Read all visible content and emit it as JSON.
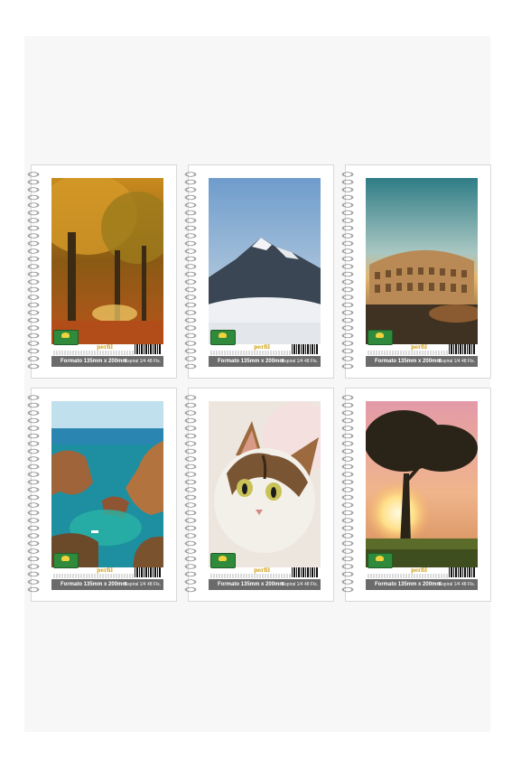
{
  "notebooks": [
    {
      "scene": "autumn-forest-icon",
      "brand": "perfil",
      "format_label": "Formato 135mm x 200mm",
      "spiral_label": "Espiral 1/4 48 Fls."
    },
    {
      "scene": "snowy-mountain-icon",
      "brand": "perfil",
      "format_label": "Formato 135mm x 200mm",
      "spiral_label": "Espiral 1/4 48 Fls."
    },
    {
      "scene": "colosseum-icon",
      "brand": "perfil",
      "format_label": "Formato 135mm x 200mm",
      "spiral_label": "Espiral 1/4 48 Fls."
    },
    {
      "scene": "coastal-cliffs-icon",
      "brand": "perfil",
      "format_label": "Formato 135mm x 200mm",
      "spiral_label": "Espiral 1/4 48 Fls."
    },
    {
      "scene": "cat-portrait-icon",
      "brand": "perfil",
      "format_label": "Formato 135mm x 200mm",
      "spiral_label": "Espiral 1/4 48 Fls."
    },
    {
      "scene": "sunset-tree-icon",
      "brand": "perfil",
      "format_label": "Formato 135mm x 200mm",
      "spiral_label": "Espiral 1/4 48 Fls."
    }
  ]
}
